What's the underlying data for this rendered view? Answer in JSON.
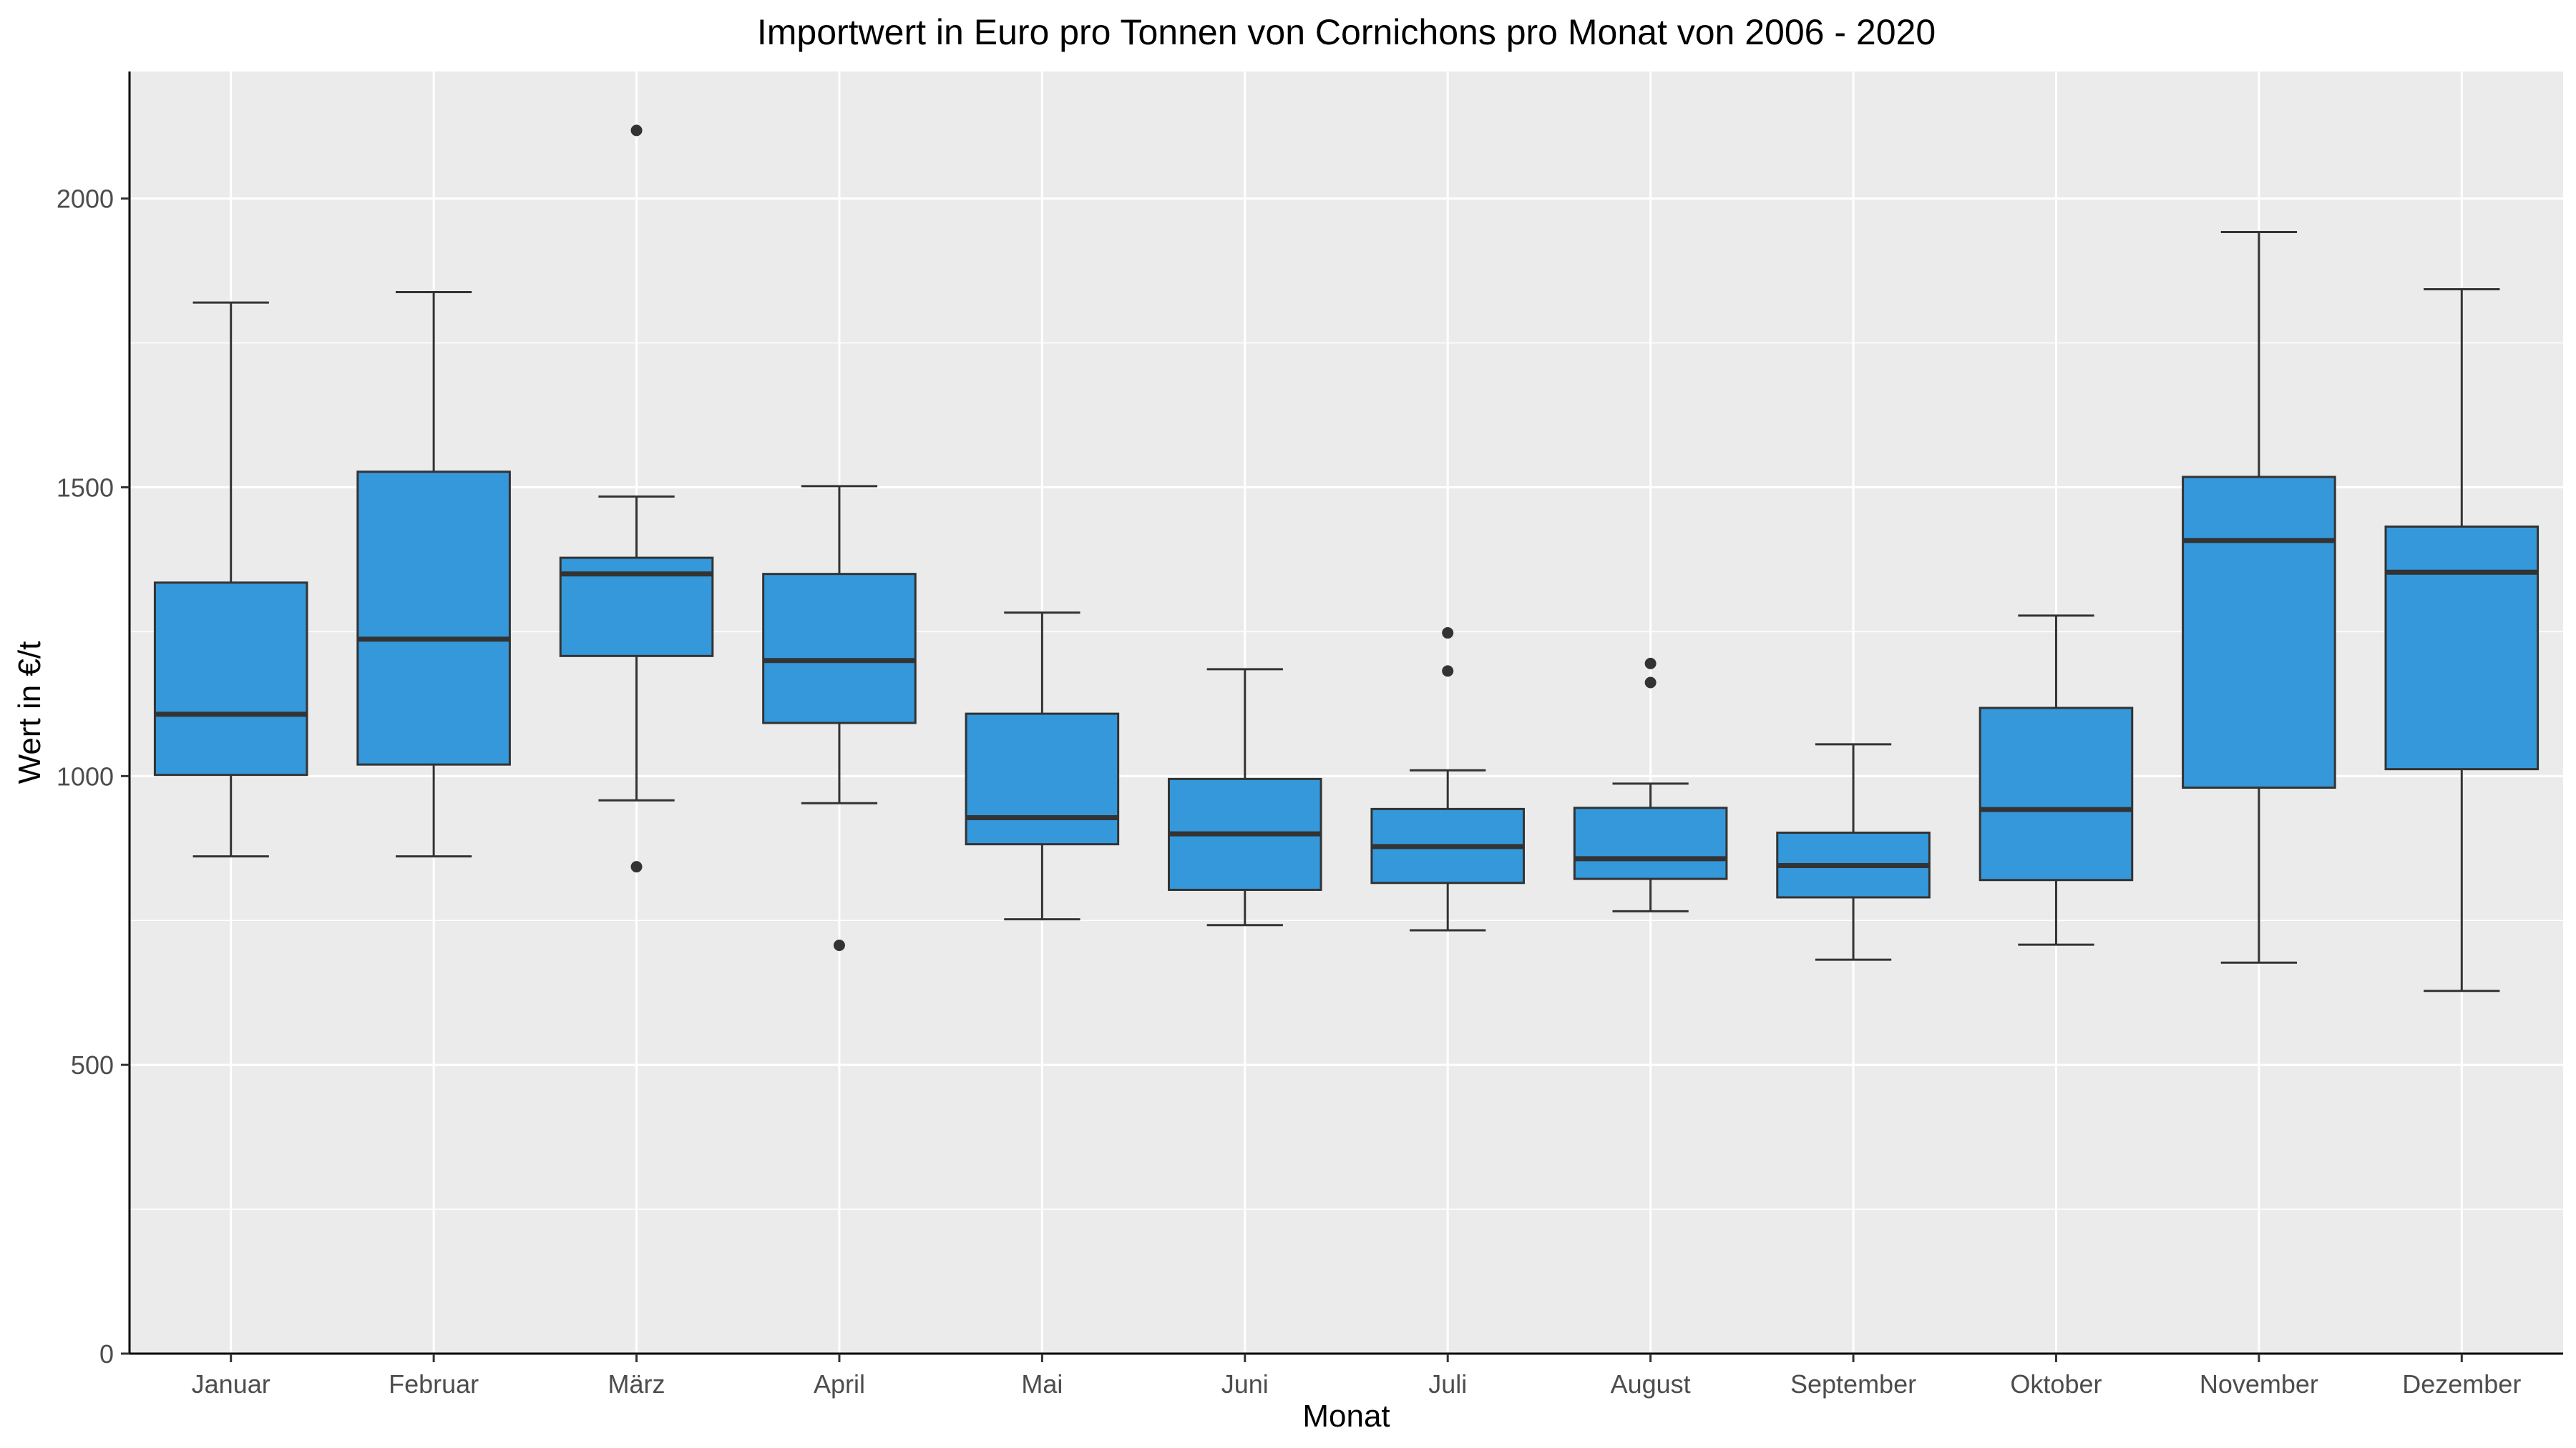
{
  "chart_data": {
    "type": "boxplot",
    "title": "Importwert in Euro pro Tonnen von Cornichons pro Monat von 2006 - 2020",
    "xlabel": "Monat",
    "ylabel": "Wert in €/t",
    "ylim": [
      0,
      2220
    ],
    "yticks": [
      0,
      500,
      1000,
      1500,
      2000
    ],
    "grid": true,
    "legend": "none",
    "categories": [
      "Januar",
      "Februar",
      "März",
      "April",
      "Mai",
      "Juni",
      "Juli",
      "August",
      "September",
      "Oktober",
      "November",
      "Dezember"
    ],
    "boxes": [
      {
        "whisker_low": 861,
        "q1": 1002,
        "median": 1107,
        "q3": 1335,
        "whisker_high": 1820,
        "outliers": []
      },
      {
        "whisker_low": 861,
        "q1": 1020,
        "median": 1237,
        "q3": 1527,
        "whisker_high": 1838,
        "outliers": []
      },
      {
        "whisker_low": 958,
        "q1": 1208,
        "median": 1350,
        "q3": 1378,
        "whisker_high": 1484,
        "outliers": [
          2118,
          843
        ]
      },
      {
        "whisker_low": 953,
        "q1": 1092,
        "median": 1200,
        "q3": 1350,
        "whisker_high": 1502,
        "outliers": [
          707
        ]
      },
      {
        "whisker_low": 752,
        "q1": 882,
        "median": 928,
        "q3": 1108,
        "whisker_high": 1283,
        "outliers": []
      },
      {
        "whisker_low": 742,
        "q1": 803,
        "median": 900,
        "q3": 995,
        "whisker_high": 1185,
        "outliers": []
      },
      {
        "whisker_low": 733,
        "q1": 815,
        "median": 878,
        "q3": 943,
        "whisker_high": 1010,
        "outliers": [
          1248,
          1182
        ]
      },
      {
        "whisker_low": 766,
        "q1": 822,
        "median": 857,
        "q3": 945,
        "whisker_high": 987,
        "outliers": [
          1195,
          1162
        ]
      },
      {
        "whisker_low": 682,
        "q1": 790,
        "median": 845,
        "q3": 902,
        "whisker_high": 1055,
        "outliers": []
      },
      {
        "whisker_low": 708,
        "q1": 820,
        "median": 942,
        "q3": 1118,
        "whisker_high": 1278,
        "outliers": []
      },
      {
        "whisker_low": 677,
        "q1": 980,
        "median": 1408,
        "q3": 1518,
        "whisker_high": 1942,
        "outliers": []
      },
      {
        "whisker_low": 628,
        "q1": 1012,
        "median": 1353,
        "q3": 1432,
        "whisker_high": 1843,
        "outliers": []
      }
    ],
    "colors": {
      "box_fill": "#3498db",
      "box_stroke": "#333333",
      "panel_bg": "#ebebeb",
      "grid": "#ffffff",
      "text": "#000000",
      "tick_text": "#4d4d4d"
    }
  }
}
